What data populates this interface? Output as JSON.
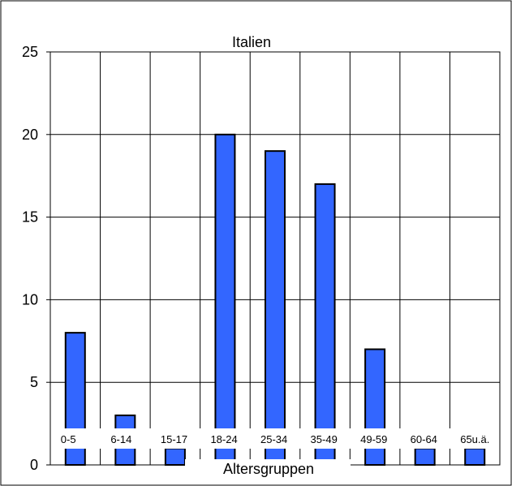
{
  "chart_data": {
    "type": "bar",
    "title": "Italien",
    "xlabel": "Altersgruppen",
    "ylabel": "",
    "categories": [
      "0-5",
      "6-14",
      "15-17",
      "18-24",
      "25-34",
      "35-49",
      "49-59",
      "60-64",
      "65u.ä."
    ],
    "values": [
      8,
      3,
      1,
      20,
      19,
      17,
      7,
      1,
      1
    ],
    "ylim": [
      0,
      25
    ],
    "yticks": [
      "0",
      "5",
      "10",
      "15",
      "20",
      "25"
    ],
    "grid": true,
    "legend": "none",
    "colors": {
      "bar": "#3366ff",
      "bar_outline": "#000000",
      "grid": "#000000",
      "frame": "#000000"
    }
  }
}
